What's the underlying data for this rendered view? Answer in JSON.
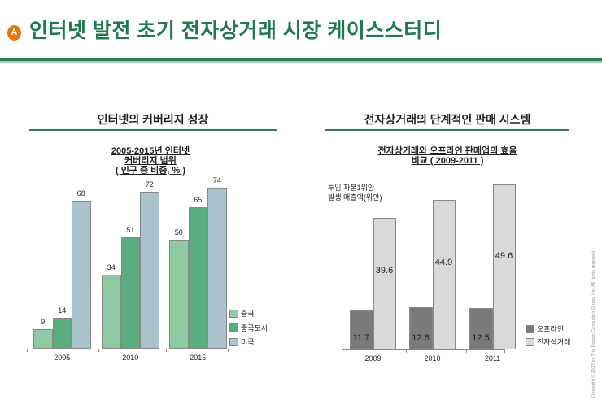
{
  "header": {
    "badge": "A",
    "title": "인터넷 발전 초기 전자상거래 시장 케이스스터디"
  },
  "left_section": {
    "title": "인터넷의 커버리지 성장"
  },
  "right_section": {
    "title": "전자상거래의 단계적인 판매 시스템"
  },
  "copyright": "Copyright © 2017 by The Boston Consulting Group, Inc. All rights reserved.",
  "chart_data": [
    {
      "type": "bar",
      "title_lines": [
        "2005-2015년 인터넷",
        "커버리지 범위",
        "( 인구 중 비중, % )"
      ],
      "categories": [
        "2005",
        "2010",
        "2015"
      ],
      "series": [
        {
          "name": "중국",
          "values": [
            9,
            34,
            50
          ],
          "color": "#8fc9a1"
        },
        {
          "name": "중국도시",
          "values": [
            14,
            51,
            65
          ],
          "color": "#5aab7e"
        },
        {
          "name": "미국",
          "values": [
            68,
            72,
            74
          ],
          "color": "#a9c3cd"
        }
      ],
      "ylim": [
        0,
        80
      ],
      "legend": "right",
      "grid": false
    },
    {
      "type": "bar",
      "title_lines": [
        "전자상거래와 오프라인 판매업의 효율",
        "비교 ( 2009-2011 )"
      ],
      "ylabel_lines": [
        "투입 자본1위안",
        "발생  매출액(위안)"
      ],
      "categories": [
        "2009",
        "2010",
        "2011"
      ],
      "series": [
        {
          "name": "오프라인",
          "values": [
            11.7,
            12.6,
            12.5
          ],
          "color": "#7a7a7a"
        },
        {
          "name": "전자상거래",
          "values": [
            39.6,
            44.9,
            49.6
          ],
          "color": "#d9d9d9"
        }
      ],
      "ylim": [
        0,
        52
      ],
      "legend": "right",
      "grid": false
    }
  ]
}
